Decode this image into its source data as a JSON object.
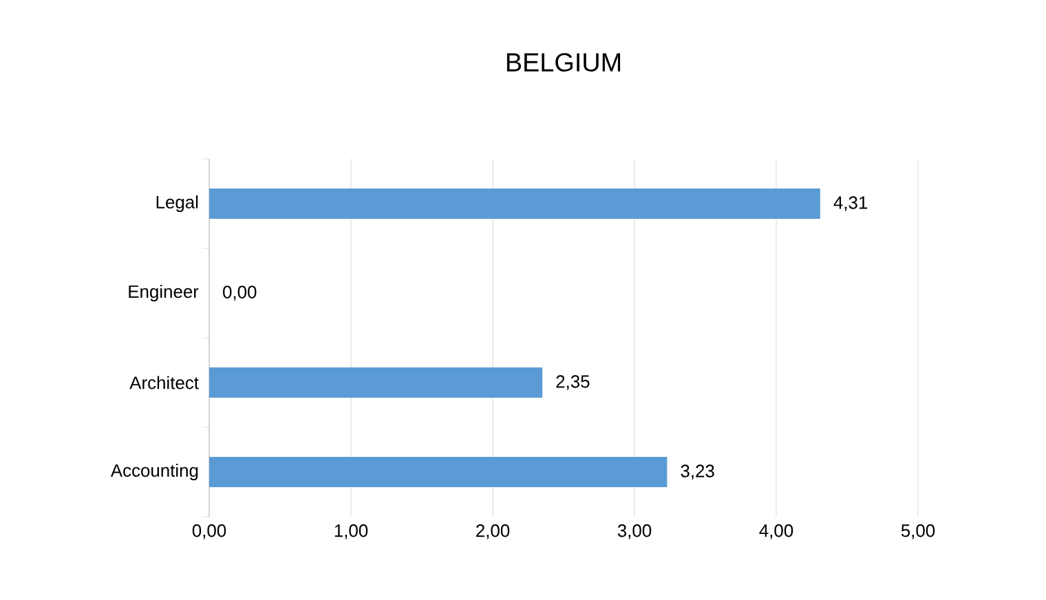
{
  "chart_data": {
    "type": "bar",
    "orientation": "horizontal",
    "title": "BELGIUM",
    "categories": [
      "Legal",
      "Engineer",
      "Architect",
      "Accounting"
    ],
    "values": [
      4.31,
      0.0,
      2.35,
      3.23
    ],
    "color": "#5b9bd5",
    "value_labels": [
      "4,31",
      "0,00",
      "2,35",
      "3,23"
    ],
    "xlim": [
      0,
      5
    ],
    "xticks": [
      {
        "value": 0,
        "label": "0,00"
      },
      {
        "value": 1,
        "label": "1,00"
      },
      {
        "value": 2,
        "label": "2,00"
      },
      {
        "value": 3,
        "label": "3,00"
      },
      {
        "value": 4,
        "label": "4,00"
      },
      {
        "value": 5,
        "label": "5,00"
      }
    ],
    "grid": "x"
  }
}
